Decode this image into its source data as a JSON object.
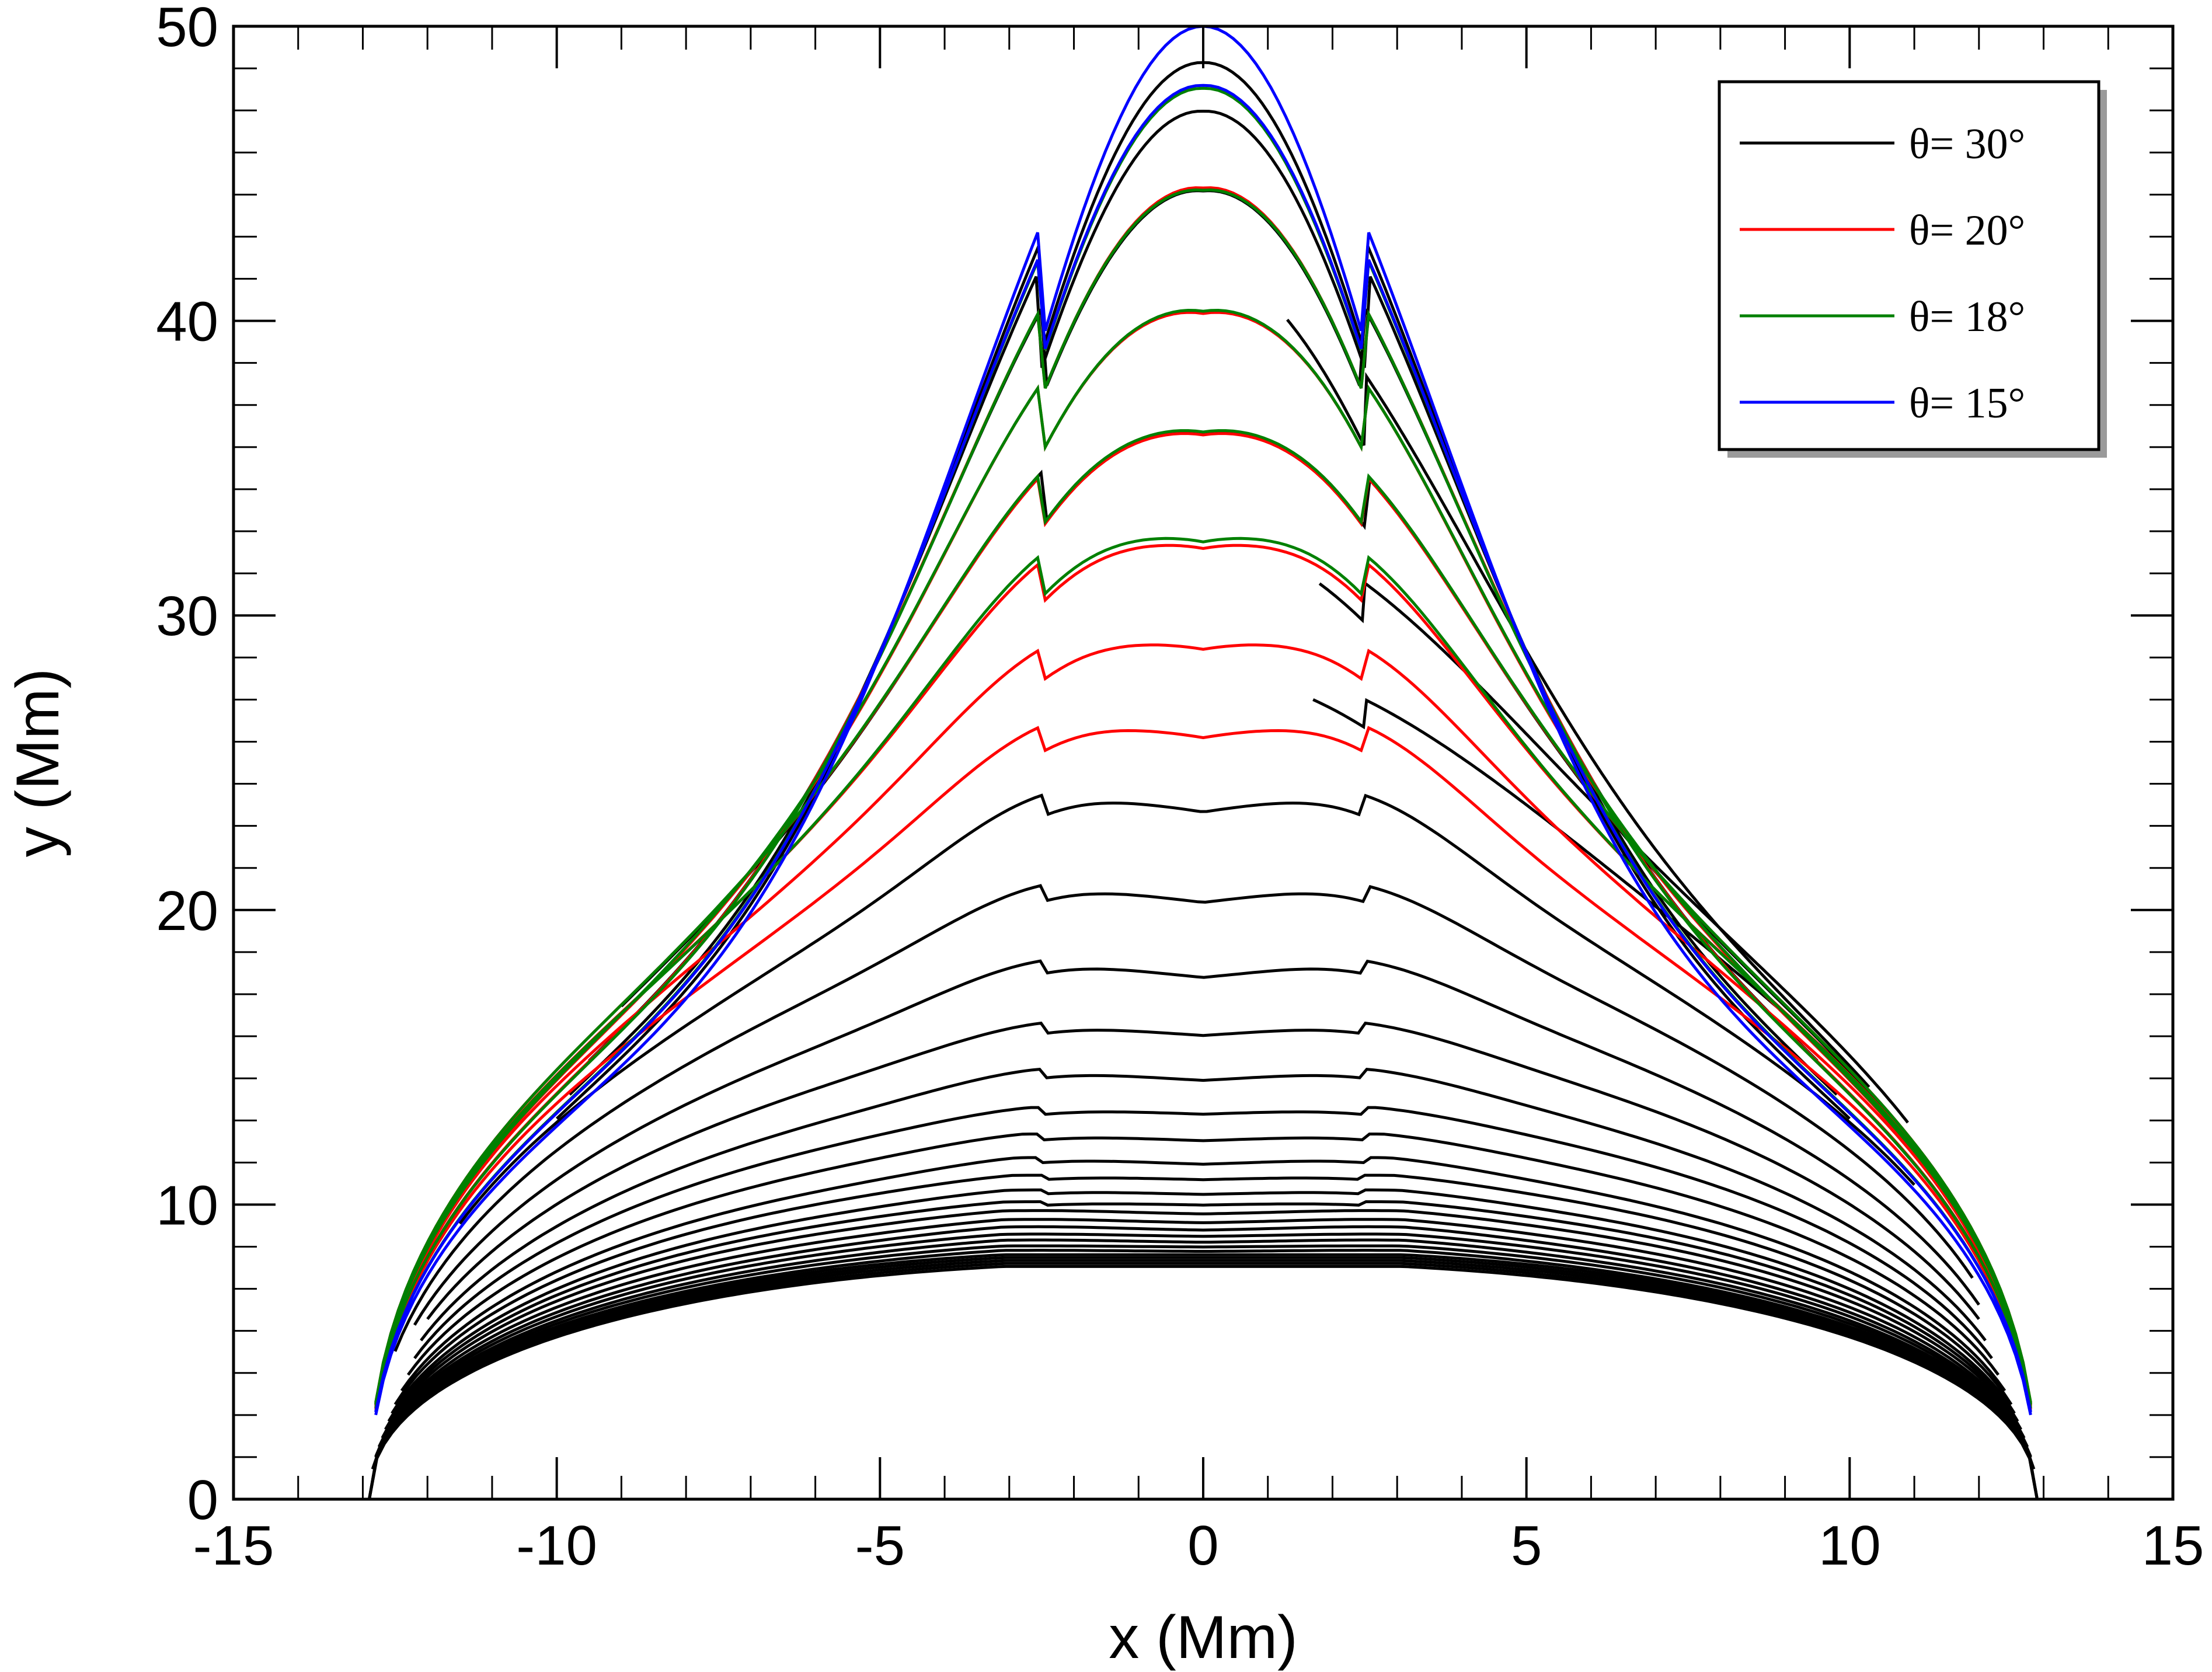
{
  "chart_data": {
    "type": "line",
    "title": "",
    "xlabel": "x (Mm)",
    "ylabel": "y (Mm)",
    "xlim": [
      -15,
      15
    ],
    "ylim": [
      0,
      50
    ],
    "x_ticks": [
      -15,
      -10,
      -5,
      0,
      5,
      10,
      15
    ],
    "y_ticks": [
      0,
      10,
      20,
      30,
      40,
      50
    ],
    "x_minor_step": 1,
    "y_minor_step": 1.4286,
    "grid": false,
    "legend_position": "top-right",
    "legend": [
      {
        "label": "θ= 30°",
        "color": "#000000"
      },
      {
        "label": "θ= 20°",
        "color": "#ff0000"
      },
      {
        "label": "θ= 18°",
        "color": "#008000"
      },
      {
        "label": "θ= 15°",
        "color": "#0000ff"
      }
    ],
    "description": "Evolving field-line (loop) profiles y(x); each series is a family of curves, each curve given by its apex height (peaks at x=-2.5 and x=2.5, central dip at x=0)",
    "series": [
      {
        "name": "θ= 30°",
        "color": "#000000",
        "curves": [
          {
            "peak": 7.9,
            "dip": 7.9,
            "x_start": -12.9,
            "x_end": 12.9,
            "y_base": 0.0
          },
          {
            "peak": 8.0,
            "dip": 8.0,
            "x_start": -12.9,
            "x_end": 12.9,
            "y_base": 0.2
          },
          {
            "peak": 8.1,
            "dip": 8.1,
            "x_start": -12.9,
            "x_end": 12.9,
            "y_base": 0.4
          },
          {
            "peak": 8.2,
            "dip": 8.2,
            "x_start": -12.9,
            "x_end": 12.9,
            "y_base": 0.6
          },
          {
            "peak": 8.3,
            "dip": 8.3,
            "x_start": -12.9,
            "x_end": 12.9,
            "y_base": 0.8
          },
          {
            "peak": 8.45,
            "dip": 8.4,
            "x_start": -12.9,
            "x_end": 12.9,
            "y_base": 1.0
          },
          {
            "peak": 8.6,
            "dip": 8.55,
            "x_start": -12.85,
            "x_end": 12.85,
            "y_base": 1.2
          },
          {
            "peak": 8.8,
            "dip": 8.7,
            "x_start": -12.8,
            "x_end": 12.8,
            "y_base": 1.4
          },
          {
            "peak": 9.0,
            "dip": 8.9,
            "x_start": -12.8,
            "x_end": 12.8,
            "y_base": 1.6
          },
          {
            "peak": 9.25,
            "dip": 9.1,
            "x_start": -12.75,
            "x_end": 12.75,
            "y_base": 1.8
          },
          {
            "peak": 9.5,
            "dip": 9.35,
            "x_start": -12.7,
            "x_end": 12.7,
            "y_base": 2.0
          },
          {
            "peak": 9.8,
            "dip": 9.65,
            "x_start": -12.65,
            "x_end": 12.65,
            "y_base": 2.2
          },
          {
            "peak": 10.1,
            "dip": 9.95,
            "x_start": -12.6,
            "x_end": 12.6,
            "y_base": 2.4
          },
          {
            "peak": 10.5,
            "dip": 10.3,
            "x_start": -12.55,
            "x_end": 12.55,
            "y_base": 2.6
          },
          {
            "peak": 11.0,
            "dip": 10.8,
            "x_start": -12.5,
            "x_end": 12.5,
            "y_base": 2.8
          },
          {
            "peak": 11.6,
            "dip": 11.3,
            "x_start": -12.4,
            "x_end": 12.4,
            "y_base": 3.0
          },
          {
            "peak": 12.4,
            "dip": 12.1,
            "x_start": -12.3,
            "x_end": 12.3,
            "y_base": 3.3
          },
          {
            "peak": 13.3,
            "dip": 13.0,
            "x_start": -12.2,
            "x_end": 12.2,
            "y_base": 3.6
          },
          {
            "peak": 14.6,
            "dip": 14.1,
            "x_start": -12.1,
            "x_end": 12.1,
            "y_base": 4.0
          },
          {
            "peak": 16.2,
            "dip": 15.6,
            "x_start": -12.0,
            "x_end": 12.0,
            "y_base": 4.5
          },
          {
            "peak": 18.4,
            "dip": 17.5,
            "x_start": -12.2,
            "x_end": 12.0,
            "y_base": 5.0
          },
          {
            "peak": 21.1,
            "dip": 20.0,
            "x_start": -12.5,
            "x_end": 11.9,
            "y_base": 5.5
          },
          {
            "peak": 24.4,
            "dip": 23.0,
            "x_start": -11.5,
            "x_end": 11.0,
            "y_base": 7.5
          },
          {
            "peak": 28.0,
            "dip": 28.0,
            "x_start": 1.7,
            "x_end": 11.8,
            "y_base": 6.2
          },
          {
            "peak": 32.6,
            "dip": 32.6,
            "x_start": 1.8,
            "x_end": 10.9,
            "y_base": 10.0
          },
          {
            "peak": 37.3,
            "dip": 35.8,
            "x_start": -9.0,
            "x_end": 10.3,
            "y_base": 13.5
          },
          {
            "peak": 41.8,
            "dip": 41.8,
            "x_start": 1.3,
            "x_end": 10.3,
            "y_base": 13.5
          },
          {
            "peak": 45.1,
            "dip": 44.2,
            "x_start": -9.5,
            "x_end": 9.5,
            "y_base": 20.0
          },
          {
            "peak": 47.5,
            "dip": 47.0,
            "x_start": -9.8,
            "x_end": 9.8,
            "y_base": 20.0
          },
          {
            "peak": 49.0,
            "dip": 48.7,
            "x_start": -10.0,
            "x_end": 10.0,
            "y_base": 20.0
          }
        ]
      },
      {
        "name": "θ= 20°",
        "color": "#ff0000",
        "curves": [
          {
            "peak": 27.0,
            "dip": 25.5,
            "x_start": -12.8,
            "x_end": 12.8,
            "y_base": 1.0
          },
          {
            "peak": 30.0,
            "dip": 28.5,
            "x_start": -12.8,
            "x_end": 12.8,
            "y_base": 1.0
          },
          {
            "peak": 33.5,
            "dip": 31.9,
            "x_start": -12.8,
            "x_end": 12.8,
            "y_base": 1.0
          },
          {
            "peak": 37.2,
            "dip": 35.8,
            "x_start": -12.8,
            "x_end": 12.8,
            "y_base": 1.0
          },
          {
            "peak": 41.4,
            "dip": 39.9,
            "x_start": -12.8,
            "x_end": 12.8,
            "y_base": 1.0
          },
          {
            "peak": 45.2,
            "dip": 44.3,
            "x_start": -12.8,
            "x_end": 12.8,
            "y_base": 1.0
          }
        ]
      },
      {
        "name": "θ= 18°",
        "color": "#008000",
        "curves": [
          {
            "peak": 33.8,
            "dip": 32.1,
            "x_start": -12.8,
            "x_end": 12.8,
            "y_base": 1.0
          },
          {
            "peak": 37.3,
            "dip": 35.9,
            "x_start": -12.8,
            "x_end": 12.8,
            "y_base": 1.0
          },
          {
            "peak": 41.4,
            "dip": 40.0,
            "x_start": -12.8,
            "x_end": 12.8,
            "y_base": 1.0
          },
          {
            "peak": 45.2,
            "dip": 44.2,
            "x_start": -12.8,
            "x_end": 12.8,
            "y_base": 1.0
          },
          {
            "peak": 48.2,
            "dip": 47.8,
            "x_start": -12.8,
            "x_end": 12.8,
            "y_base": 1.0
          }
        ]
      },
      {
        "name": "θ= 15°",
        "color": "#0000ff",
        "curves": [
          {
            "peak": 48.3,
            "dip": 47.9,
            "x_start": -12.8,
            "x_end": 12.8,
            "y_base": 0.0
          },
          {
            "peak": 50.0,
            "dip": 50.0,
            "x_start": -12.8,
            "x_end": 12.8,
            "y_base": 0.0
          }
        ]
      }
    ]
  }
}
